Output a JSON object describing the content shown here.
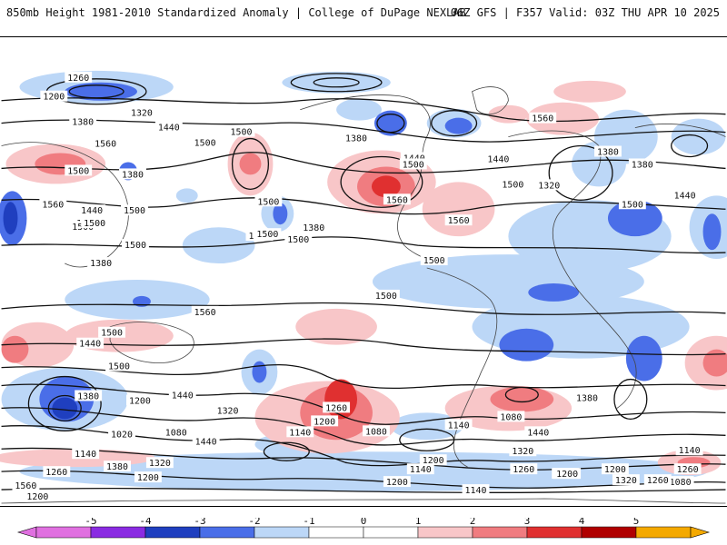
{
  "header": {
    "left_text": "850mb Height 1981-2010 Standardized Anomaly | College of DuPage NEXLAB",
    "right_text": "06Z GFS | F357 Valid: 03Z THU APR 10 2025"
  },
  "map": {
    "projection": "cylindrical, Pacific-centered",
    "contour_labels": [
      "1260",
      "1200",
      "1320",
      "1380",
      "1440",
      "1560",
      "1500",
      "1500",
      "1500",
      "1380",
      "1440",
      "1500",
      "1560",
      "1500",
      "1500",
      "1380",
      "1500",
      "1380",
      "1440",
      "1560",
      "1500",
      "1560",
      "1440",
      "1500",
      "1560",
      "1380",
      "1320",
      "1380",
      "1440",
      "1500",
      "1500",
      "1500",
      "1500",
      "1500",
      "1500",
      "1500",
      "1500",
      "1560",
      "1380",
      "1440",
      "1500",
      "1500",
      "1380",
      "1440",
      "1200",
      "1080",
      "1020",
      "1140",
      "1320",
      "1380",
      "1260",
      "1200",
      "1560",
      "1440",
      "1320",
      "1260",
      "1200",
      "1140",
      "1080",
      "1140",
      "1200",
      "1080",
      "1140",
      "1200",
      "1140",
      "1380",
      "1440",
      "1320",
      "1260",
      "1200",
      "1140",
      "1260",
      "1320",
      "1080",
      "1200",
      "1440",
      "1200",
      "1260"
    ],
    "anomaly_colors": {
      "neg5": "#e070e0",
      "neg4": "#8a2be2",
      "neg3": "#1f3fbf",
      "neg2": "#4a6ee8",
      "neg1": "#bcd7f7",
      "pos1": "#f8c6c8",
      "pos2": "#f07c80",
      "pos3": "#e03030",
      "pos4": "#b00000",
      "pos5": "#f4a900"
    }
  },
  "colorbar": {
    "ticks": [
      "-5",
      "-4",
      "-3",
      "-2",
      "-1",
      "0",
      "1",
      "2",
      "3",
      "4",
      "5"
    ],
    "colors": [
      "#e070e0",
      "#8a2be2",
      "#1f3fbf",
      "#4a6ee8",
      "#bcd7f7",
      "#ffffff",
      "#ffffff",
      "#f8c6c8",
      "#f07c80",
      "#e03030",
      "#b00000",
      "#f4a900"
    ]
  }
}
